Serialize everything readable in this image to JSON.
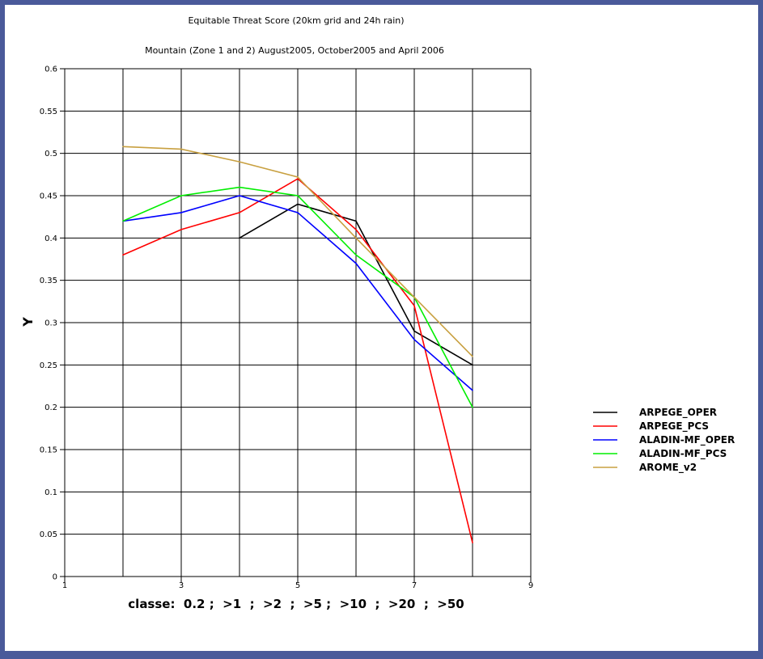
{
  "chart_data": {
    "type": "line",
    "title": "Equitable Threat Score (20km grid and 24h rain)",
    "subtitle": "Mountain (Zone 1 and 2) August2005, October2005 and April 2006",
    "xlabel": "classe:  0.2 ;  >1  ;  >2  ;  >5 ;  >10  ;  >20  ;  >50",
    "ylabel": "Y",
    "xlim": [
      1,
      9
    ],
    "ylim": [
      0,
      0.6
    ],
    "x_ticks": [
      1,
      3,
      5,
      7,
      9
    ],
    "y_ticks": [
      0,
      0.05,
      0.1,
      0.15,
      0.2,
      0.25,
      0.3,
      0.35,
      0.4,
      0.45,
      0.5,
      0.55,
      0.6
    ],
    "x_tick_labels": [
      "1",
      "3",
      "5",
      "7",
      "9"
    ],
    "y_tick_labels": [
      "0",
      "0.05",
      "0.1",
      "0.15",
      "0.2",
      "0.25",
      "0.3",
      "0.35",
      "0.4",
      "0.45",
      "0.5",
      "0.55",
      "0.6"
    ],
    "grid": true,
    "legend_position": "right",
    "series": [
      {
        "name": "ARPEGE_OPER",
        "color": "#000000",
        "x": [
          4,
          5,
          6,
          7,
          8
        ],
        "values": [
          0.4,
          0.44,
          0.42,
          0.29,
          0.25
        ]
      },
      {
        "name": "ARPEGE_PCS",
        "color": "#ff0000",
        "x": [
          2,
          3,
          4,
          5,
          6,
          7,
          8
        ],
        "values": [
          0.38,
          0.41,
          0.43,
          0.47,
          0.41,
          0.32,
          0.04
        ]
      },
      {
        "name": "ALADIN-MF_OPER",
        "color": "#0000ff",
        "x": [
          2,
          3,
          4,
          5,
          6,
          7,
          8
        ],
        "values": [
          0.42,
          0.43,
          0.45,
          0.43,
          0.37,
          0.28,
          0.22
        ]
      },
      {
        "name": "ALADIN-MF_PCS",
        "color": "#00ee00",
        "x": [
          2,
          3,
          4,
          5,
          6,
          7,
          8
        ],
        "values": [
          0.42,
          0.45,
          0.46,
          0.45,
          0.38,
          0.33,
          0.2
        ]
      },
      {
        "name": "AROME_v2",
        "color": "#c8a040",
        "x": [
          2,
          3,
          4,
          5,
          6,
          7,
          8
        ],
        "values": [
          0.508,
          0.505,
          0.49,
          0.472,
          0.4,
          0.33,
          0.26
        ]
      }
    ]
  }
}
